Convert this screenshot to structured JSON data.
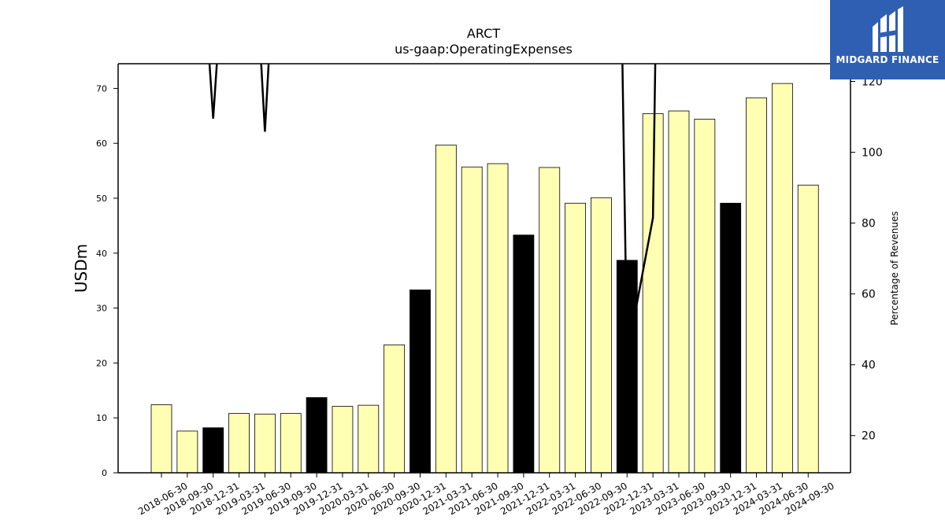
{
  "chart_data": {
    "type": "bar",
    "title": "ARCT",
    "subtitle": "us-gaap:OperatingExpenses",
    "ylabel": "USDm",
    "y2label": "Percentage of Revenues",
    "ylim": [
      0,
      74.5
    ],
    "y2lim": [
      9.5,
      125
    ],
    "yticks": [
      0,
      10,
      20,
      30,
      40,
      50,
      60,
      70
    ],
    "y2ticks": [
      20,
      40,
      60,
      80,
      100,
      120
    ],
    "categories": [
      "2018-06-30",
      "2018-09-30",
      "2018-12-31",
      "2019-03-31",
      "2019-06-30",
      "2019-09-30",
      "2019-12-31",
      "2020-03-31",
      "2020-06-30",
      "2020-09-30",
      "2020-12-31",
      "2021-03-31",
      "2021-06-30",
      "2021-09-30",
      "2021-12-31",
      "2022-03-31",
      "2022-06-30",
      "2022-09-30",
      "2022-12-31",
      "2023-03-31",
      "2023-06-30",
      "2023-09-30",
      "2023-12-31",
      "2024-03-31",
      "2024-06-30",
      "2024-09-30"
    ],
    "series": [
      {
        "type": "bar",
        "values": [
          12.4,
          7.6,
          8.2,
          10.8,
          10.7,
          10.8,
          13.7,
          12.1,
          12.3,
          23.3,
          33.3,
          59.7,
          55.7,
          56.3,
          43.3,
          55.6,
          49.1,
          50.1,
          38.7,
          65.4,
          65.9,
          64.4,
          49.1,
          68.3,
          70.9,
          52.4
        ],
        "highlight": [
          false,
          false,
          true,
          false,
          false,
          false,
          true,
          false,
          false,
          false,
          true,
          false,
          false,
          false,
          true,
          false,
          false,
          false,
          true,
          false,
          false,
          false,
          true,
          false,
          false,
          false
        ],
        "color": "#ffffb3",
        "highlight_color": "#000000"
      },
      {
        "type": "line",
        "axis": "right",
        "values": [
          null,
          null,
          109.5,
          null,
          105.8,
          null,
          null,
          null,
          null,
          null,
          null,
          null,
          null,
          null,
          null,
          null,
          null,
          null,
          42.5,
          81.5,
          null,
          null,
          null,
          null,
          null,
          null
        ],
        "color": "#000000"
      }
    ]
  },
  "logo": {
    "text": "MIDGARD FINANCE",
    "background": "#2f5fb3"
  }
}
